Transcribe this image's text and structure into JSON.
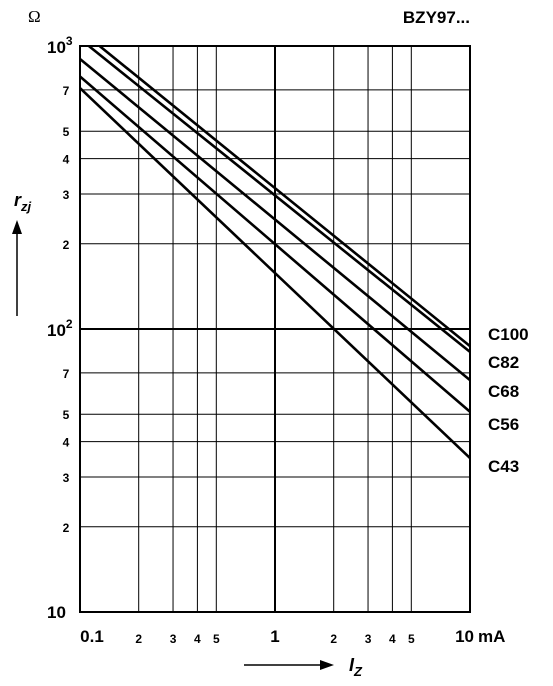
{
  "chart_data": {
    "type": "line",
    "title": "BZY97...",
    "xlabel": "I",
    "xlabel_sub": "Z",
    "xunit": "mA",
    "ylabel": "r",
    "ylabel_sub": "zj",
    "yunit": "Ω",
    "x_scale": "log",
    "y_scale": "log",
    "xlim": [
      0.1,
      10
    ],
    "ylim": [
      10,
      1000
    ],
    "grid": true,
    "x_ticks_major": [
      0.1,
      1,
      10
    ],
    "x_ticks_minor": [
      2,
      3,
      4,
      5,
      20,
      30,
      40,
      50
    ],
    "x_tick_labels": [
      "0.1",
      "2",
      "3",
      "4",
      "5",
      "1",
      "2",
      "3",
      "4",
      "5",
      "10"
    ],
    "y_tick_labels": {
      "major_base": "10",
      "major_exponents": [
        "3",
        "2"
      ],
      "bottom": "10",
      "minor": [
        "7",
        "5",
        "4",
        "3",
        "2",
        "7",
        "5",
        "4",
        "3",
        "2"
      ]
    },
    "series": [
      {
        "name": "C100",
        "x": [
          0.126,
          10
        ],
        "y": [
          1000,
          87
        ]
      },
      {
        "name": "C82",
        "x": [
          0.111,
          10
        ],
        "y": [
          1000,
          83
        ]
      },
      {
        "name": "C68",
        "x": [
          0.1,
          10
        ],
        "y": [
          900,
          66
        ]
      },
      {
        "name": "C56",
        "x": [
          0.1,
          10
        ],
        "y": [
          780,
          51
        ]
      },
      {
        "name": "C43",
        "x": [
          0.1,
          10
        ],
        "y": [
          710,
          35
        ]
      }
    ]
  }
}
